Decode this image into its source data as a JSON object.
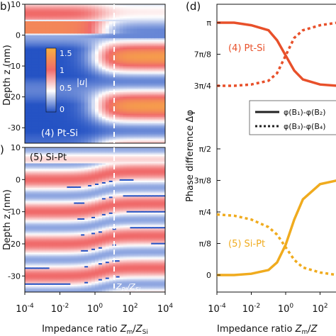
{
  "colors": {
    "pt_si": "#e8502a",
    "si_pt": "#f0ab1e",
    "heat_low": "#2553c4",
    "heat_mid": "#ffffff",
    "heat_high": "#f06a6a",
    "heat_top": "#f8b040",
    "dash_line": "#ffffff"
  },
  "chart_data": [
    {
      "type": "heatmap",
      "panel": "b",
      "label": "(4) Pt-Si",
      "xlabel": "Impedance ratio Z_m/Z_Si",
      "ylabel": "Depth z (nm)",
      "x_log": true,
      "xlim_exp": [
        -4,
        4
      ],
      "ylim": [
        -35,
        10
      ],
      "yticks": [
        "10",
        "0",
        "-10",
        "-20",
        "-30"
      ],
      "colorbar": {
        "label": "|u|",
        "ticks": [
          "1.5",
          "1",
          "0.5",
          "0"
        ],
        "range": [
          0,
          1.5
        ]
      },
      "dashed_line_x_exp": 1,
      "bands_left": [
        {
          "z": 7,
          "amp": 1.2
        },
        {
          "z": 2,
          "amp": 1.2
        },
        {
          "z": -4,
          "amp": 0.1
        },
        {
          "z": -14,
          "amp": 0.1
        },
        {
          "z": -24,
          "amp": 0.1
        }
      ],
      "bands_right": [
        {
          "z": 7.5,
          "amp": 0.5
        },
        {
          "z": -7,
          "amp": 1.35
        },
        {
          "z": -16,
          "amp": 1.0
        },
        {
          "z": -23,
          "amp": 1.35
        },
        {
          "z": -31,
          "amp": 1.3
        }
      ]
    },
    {
      "type": "heatmap",
      "panel": "c",
      "label": "(5) Si-Pt",
      "xlabel": "Impedance ratio Z_m/Z_Si",
      "ylabel": "Depth z (nm)",
      "x_log": true,
      "xlim_exp": [
        -4,
        4
      ],
      "ylim": [
        -35,
        10
      ],
      "yticks": [
        "10",
        "0",
        "-10",
        "-20",
        "-30"
      ],
      "xticks": [
        "10^-4",
        "10^-2",
        "10^0",
        "10^2",
        "10^4"
      ],
      "dashed_line_x_exp": 1,
      "dashed_line_label": "Z_Pt/Z_Si"
    },
    {
      "type": "line",
      "panel": "d",
      "xlabel": "Impedance ratio Z_m/Z_Si",
      "ylabel": "Phase difference Δφ",
      "x_log": true,
      "xlim_exp": [
        -4,
        4
      ],
      "ylim": [
        0,
        1
      ],
      "yticks_left": [
        {
          "label": "π",
          "value": 1.0
        },
        {
          "label": "7π/8",
          "value": 0.875
        },
        {
          "label": "3π/4",
          "value": 0.75
        },
        {
          "label": "π/2",
          "value": 0.5
        },
        {
          "label": "3π/8",
          "value": 0.375
        },
        {
          "label": "π/4",
          "value": 0.25
        },
        {
          "label": "π/8",
          "value": 0.125
        },
        {
          "label": "0",
          "value": 0.0
        }
      ],
      "xticks": [
        "10^-4",
        "10^-2",
        "10^0",
        "10^2"
      ],
      "legend": {
        "placement": "right",
        "entries": [
          {
            "label": "φ(B₁)-φ(B₂)",
            "style": "solid"
          },
          {
            "label": "φ(B₃)-φ(B₄)",
            "style": "dotted"
          }
        ]
      },
      "annotations": [
        "(4) Pt-Si",
        "(5) Si-Pt"
      ],
      "series": [
        {
          "group": "(4) Pt-Si",
          "style": "solid",
          "x_exp": [
            -4,
            -3,
            -2,
            -1,
            -0.5,
            0,
            0.5,
            1,
            2,
            3,
            4
          ],
          "y": [
            1.0,
            1.0,
            0.99,
            0.97,
            0.93,
            0.87,
            0.81,
            0.775,
            0.755,
            0.75,
            0.75
          ]
        },
        {
          "group": "(4) Pt-Si",
          "style": "dotted",
          "x_exp": [
            -4,
            -3,
            -2,
            -1,
            -0.5,
            0,
            0.5,
            1,
            2,
            3,
            4
          ],
          "y": [
            0.75,
            0.75,
            0.755,
            0.77,
            0.8,
            0.87,
            0.94,
            0.97,
            0.99,
            1.0,
            1.0
          ]
        },
        {
          "group": "(5) Si-Pt",
          "style": "solid",
          "x_exp": [
            -4,
            -3,
            -2,
            -1,
            -0.5,
            0,
            0.5,
            1,
            2,
            3,
            4
          ],
          "y": [
            0.0,
            0.0,
            0.005,
            0.02,
            0.05,
            0.12,
            0.22,
            0.3,
            0.36,
            0.375,
            0.375
          ]
        },
        {
          "group": "(5) Si-Pt",
          "style": "dotted",
          "x_exp": [
            -4,
            -3,
            -2,
            -1,
            -0.5,
            0,
            0.5,
            1,
            2,
            3,
            4
          ],
          "y": [
            0.24,
            0.235,
            0.22,
            0.19,
            0.16,
            0.11,
            0.06,
            0.03,
            0.01,
            0.0,
            0.0
          ]
        }
      ]
    }
  ],
  "text": {
    "panel_d": "(d)",
    "panel_b_partial": "b)",
    "panel_c_partial": ")",
    "xlabel": "Impedance ratio ",
    "z_m": "Z",
    "z_m_sub": "m",
    "slash": "/",
    "z_si": "Z",
    "z_si_sub": "Si",
    "ylabel_left": "Depth z (nm)",
    "ylabel_right": "Phase difference Δφ",
    "cbar_label": "|u|",
    "label_b": "(4) Pt-Si",
    "label_c": "(5) Si-Pt",
    "dash_label_top": "Z",
    "dash_label_sub": "Pt",
    "dash_label_rest": "/Z",
    "dash_label_sub2": "Si",
    "ann_ptsi": "(4) Pt-Si",
    "ann_sipt": "(5) Si-Pt"
  }
}
